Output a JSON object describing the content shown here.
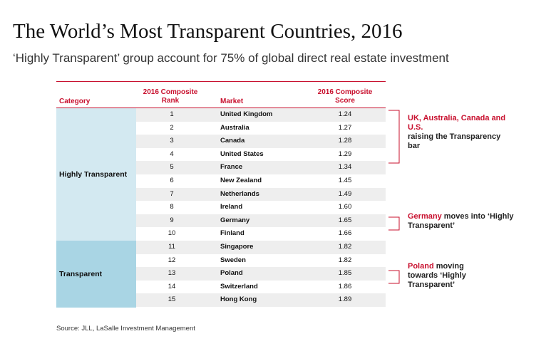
{
  "title": "The World’s Most Transparent Countries, 2016",
  "subtitle": "‘Highly Transparent’ group account for 75% of global direct real estate investment",
  "table": {
    "headers": {
      "category": "Category",
      "rank": "2016 Composite Rank",
      "market": "Market",
      "score": "2016 Composite Score"
    },
    "groups": [
      {
        "label": "Highly Transparent"
      },
      {
        "label": "Transparent"
      }
    ],
    "rows": [
      {
        "rank": "1",
        "market": "United Kingdom",
        "score": "1.24"
      },
      {
        "rank": "2",
        "market": "Australia",
        "score": "1.27"
      },
      {
        "rank": "3",
        "market": "Canada",
        "score": "1.28"
      },
      {
        "rank": "4",
        "market": "United States",
        "score": "1.29"
      },
      {
        "rank": "5",
        "market": "France",
        "score": "1.34"
      },
      {
        "rank": "6",
        "market": "New Zealand",
        "score": "1.45"
      },
      {
        "rank": "7",
        "market": "Netherlands",
        "score": "1.49"
      },
      {
        "rank": "8",
        "market": "Ireland",
        "score": "1.60"
      },
      {
        "rank": "9",
        "market": "Germany",
        "score": "1.65"
      },
      {
        "rank": "10",
        "market": "Finland",
        "score": "1.66"
      },
      {
        "rank": "11",
        "market": "Singapore",
        "score": "1.82"
      },
      {
        "rank": "12",
        "market": "Sweden",
        "score": "1.82"
      },
      {
        "rank": "13",
        "market": "Poland",
        "score": "1.85"
      },
      {
        "rank": "14",
        "market": "Switzerland",
        "score": "1.86"
      },
      {
        "rank": "15",
        "market": "Hong Kong",
        "score": "1.89"
      }
    ]
  },
  "notes": {
    "n1": {
      "red": "UK, Australia, Canada and U.S.",
      "rest": "raising the Transparency bar"
    },
    "n2": {
      "red": "Germany",
      "rest": " moves into ‘Highly Transparent’"
    },
    "n3": {
      "red": "Poland",
      "rest": " moving towards ‘Highly Transparent’"
    }
  },
  "source": "Source: JLL, LaSalle Investment Management",
  "colors": {
    "accent": "#c8102e",
    "highly_transparent_bg": "#d3e9f1",
    "transparent_bg": "#a9d5e4"
  }
}
